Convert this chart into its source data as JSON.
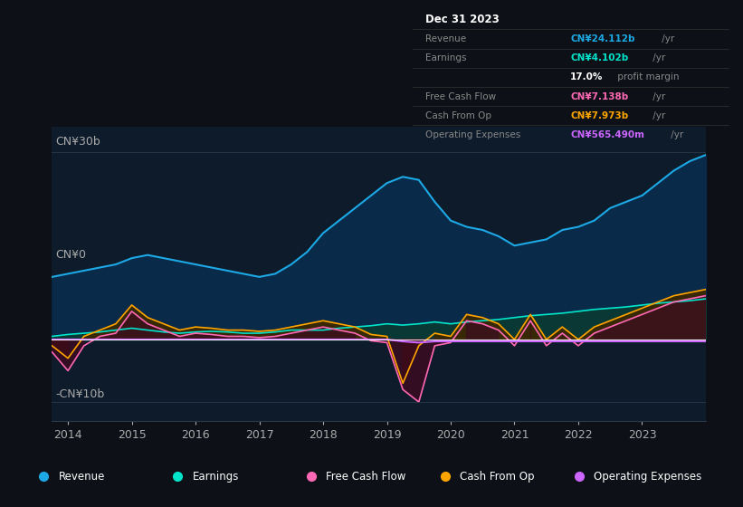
{
  "background_color": "#0d1117",
  "plot_bg_color": "#0d1b2a",
  "title": "Dec 31 2023",
  "ytick_labels": [
    "-CN¥10b",
    "CN¥0",
    "CN¥30b"
  ],
  "years": [
    2013.75,
    2014.0,
    2014.25,
    2014.5,
    2014.75,
    2015.0,
    2015.25,
    2015.5,
    2015.75,
    2016.0,
    2016.25,
    2016.5,
    2016.75,
    2017.0,
    2017.25,
    2017.5,
    2017.75,
    2018.0,
    2018.25,
    2018.5,
    2018.75,
    2019.0,
    2019.25,
    2019.5,
    2019.75,
    2020.0,
    2020.25,
    2020.5,
    2020.75,
    2021.0,
    2021.25,
    2021.5,
    2021.75,
    2022.0,
    2022.25,
    2022.5,
    2022.75,
    2023.0,
    2023.25,
    2023.5,
    2023.75,
    2024.0
  ],
  "revenue": [
    10,
    10.5,
    11,
    11.5,
    12,
    13,
    13.5,
    13,
    12.5,
    12,
    11.5,
    11,
    10.5,
    10,
    10.5,
    12,
    14,
    17,
    19,
    21,
    23,
    25,
    26,
    25.5,
    22,
    19,
    18,
    17.5,
    16.5,
    15,
    15.5,
    16,
    17.5,
    18,
    19,
    21,
    22,
    23,
    25,
    27,
    28.5,
    29.5
  ],
  "earnings": [
    0.5,
    0.8,
    1.0,
    1.2,
    1.5,
    1.8,
    1.5,
    1.2,
    1.0,
    1.2,
    1.3,
    1.2,
    1.0,
    1.0,
    1.2,
    1.5,
    1.5,
    1.5,
    1.8,
    2.0,
    2.2,
    2.5,
    2.3,
    2.5,
    2.8,
    2.5,
    2.8,
    3.0,
    3.2,
    3.5,
    3.8,
    4.0,
    4.2,
    4.5,
    4.8,
    5.0,
    5.2,
    5.5,
    5.8,
    6.0,
    6.2,
    6.5
  ],
  "free_cash_flow": [
    -2,
    -5,
    -1,
    0.5,
    1.0,
    4.5,
    2.5,
    1.5,
    0.5,
    1.0,
    0.8,
    0.5,
    0.5,
    0.3,
    0.5,
    1.0,
    1.5,
    2.0,
    1.5,
    1.0,
    -0.2,
    -0.5,
    -8,
    -10,
    -1,
    -0.5,
    3.0,
    2.5,
    1.5,
    -1,
    3.0,
    -1,
    1.0,
    -1,
    1.0,
    2.0,
    3.0,
    4.0,
    5.0,
    6.0,
    6.5,
    7.0
  ],
  "cash_from_op": [
    -1,
    -3,
    0.5,
    1.5,
    2.5,
    5.5,
    3.5,
    2.5,
    1.5,
    2.0,
    1.8,
    1.5,
    1.5,
    1.3,
    1.5,
    2.0,
    2.5,
    3.0,
    2.5,
    2.0,
    0.8,
    0.5,
    -7,
    -1,
    1,
    0.5,
    4.0,
    3.5,
    2.5,
    0,
    4.0,
    0,
    2.0,
    0,
    2.0,
    3.0,
    4.0,
    5.0,
    6.0,
    7.0,
    7.5,
    8.0
  ],
  "op_expenses": [
    0,
    0,
    0,
    0,
    0,
    0,
    0,
    0,
    0,
    0,
    0,
    0,
    0,
    0,
    0,
    0,
    0,
    0,
    0,
    0,
    0,
    0,
    -0.3,
    -0.5,
    -0.3,
    -0.3,
    -0.3,
    -0.3,
    -0.3,
    -0.3,
    -0.3,
    -0.3,
    -0.3,
    -0.3,
    -0.3,
    -0.3,
    -0.3,
    -0.3,
    -0.3,
    -0.3,
    -0.3,
    -0.3
  ],
  "revenue_color": "#1ca9e6",
  "earnings_color": "#00e5cc",
  "fcf_color": "#ff69b4",
  "cashop_color": "#ffa500",
  "opex_color": "#cc66ff",
  "legend_labels": [
    "Revenue",
    "Earnings",
    "Free Cash Flow",
    "Cash From Op",
    "Operating Expenses"
  ],
  "legend_colors": [
    "#1ca9e6",
    "#00e5cc",
    "#ff69b4",
    "#ffa500",
    "#cc66ff"
  ],
  "xtick_years": [
    2014,
    2015,
    2016,
    2017,
    2018,
    2019,
    2020,
    2021,
    2022,
    2023
  ],
  "info_rows": [
    {
      "label": "Dec 31 2023",
      "value": "",
      "suffix": "",
      "label_color": "#ffffff",
      "value_color": "#ffffff",
      "is_title": true
    },
    {
      "label": "Revenue",
      "value": "CN¥24.112b",
      "suffix": " /yr",
      "label_color": "#888888",
      "value_color": "#1ca9e6",
      "is_title": false
    },
    {
      "label": "Earnings",
      "value": "CN¥4.102b",
      "suffix": " /yr",
      "label_color": "#888888",
      "value_color": "#00e5cc",
      "is_title": false
    },
    {
      "label": "",
      "value": "17.0%",
      "suffix": " profit margin",
      "label_color": "#888888",
      "value_color": "#ffffff",
      "is_title": false
    },
    {
      "label": "Free Cash Flow",
      "value": "CN¥7.138b",
      "suffix": " /yr",
      "label_color": "#888888",
      "value_color": "#ff69b4",
      "is_title": false
    },
    {
      "label": "Cash From Op",
      "value": "CN¥7.973b",
      "suffix": " /yr",
      "label_color": "#888888",
      "value_color": "#ffa500",
      "is_title": false
    },
    {
      "label": "Operating Expenses",
      "value": "CN¥565.490m",
      "suffix": " /yr",
      "label_color": "#888888",
      "value_color": "#cc66ff",
      "is_title": false
    }
  ]
}
